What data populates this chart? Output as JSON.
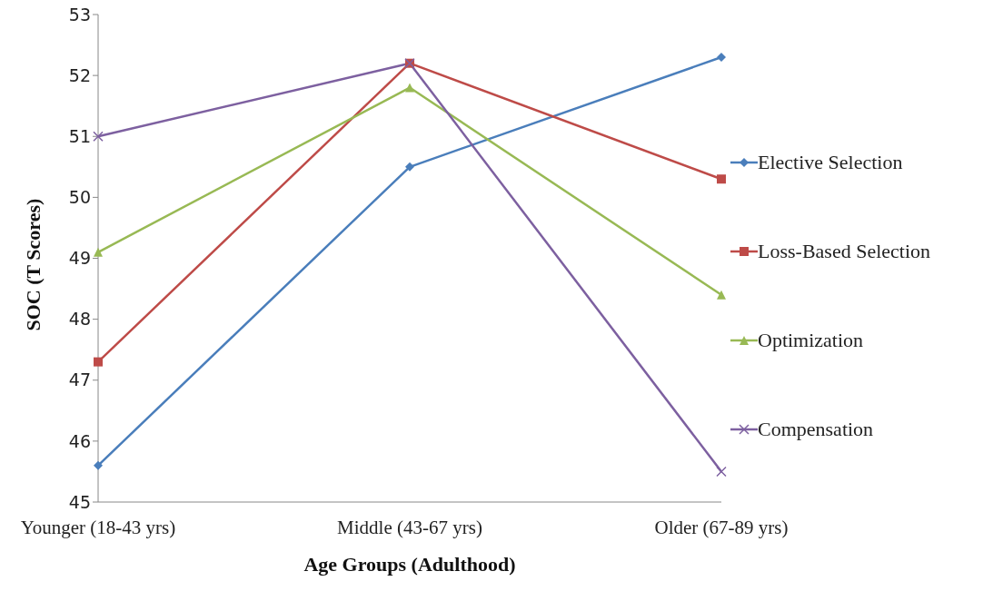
{
  "chart_data": {
    "type": "line",
    "xlabel": "Age Groups (Adulthood)",
    "ylabel": "SOC (T Scores)",
    "categories": [
      "Younger (18-43 yrs)",
      "Middle (43-67 yrs)",
      "Older (67-89 yrs)"
    ],
    "ylim": [
      45,
      53
    ],
    "yticks": [
      45,
      46,
      47,
      48,
      49,
      50,
      51,
      52,
      53
    ],
    "grid": false,
    "legend": "right",
    "series": [
      {
        "name": "Elective Selection",
        "color": "#4a7ebb",
        "marker": "diamond",
        "values": [
          45.6,
          50.5,
          52.3
        ]
      },
      {
        "name": "Loss-Based Selection",
        "color": "#be4b48",
        "marker": "square",
        "values": [
          47.3,
          52.2,
          50.3
        ]
      },
      {
        "name": "Optimization",
        "color": "#98b954",
        "marker": "triangle",
        "values": [
          49.1,
          51.8,
          48.4
        ]
      },
      {
        "name": "Compensation",
        "color": "#7d60a0",
        "marker": "cross",
        "values": [
          51.0,
          52.2,
          45.5
        ]
      }
    ]
  }
}
